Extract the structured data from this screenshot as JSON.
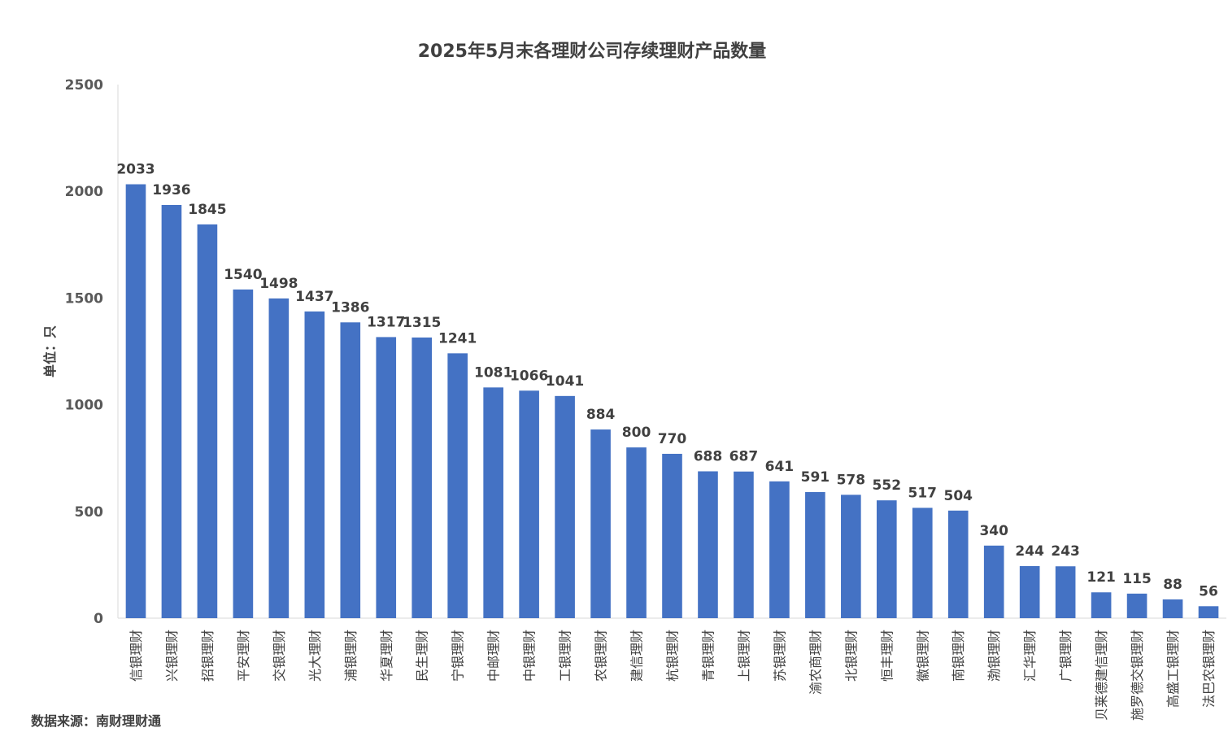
{
  "chart_data": {
    "type": "bar",
    "title": "2025年5月末各理财公司存续理财产品数量",
    "ylabel": "单位：只",
    "xlabel": "",
    "ylim": [
      0,
      2500
    ],
    "yticks": [
      0,
      500,
      1000,
      1500,
      2000,
      2500
    ],
    "grid": false,
    "legend": "none",
    "bar_color": "#4472C4",
    "categories": [
      "信银理财",
      "兴银理财",
      "招银理财",
      "平安理财",
      "交银理财",
      "光大理财",
      "浦银理财",
      "华夏理财",
      "民生理财",
      "宁银理财",
      "中邮理财",
      "中银理财",
      "工银理财",
      "农银理财",
      "建信理财",
      "杭银理财",
      "青银理财",
      "上银理财",
      "苏银理财",
      "渝农商理财",
      "北银理财",
      "恒丰理财",
      "徽银理财",
      "南银理财",
      "渤银理财",
      "汇华理财",
      "广银理财",
      "贝莱德建信理财",
      "施罗德交银理财",
      "高盛工银理财",
      "法巴农银理财"
    ],
    "values": [
      2033,
      1936,
      1845,
      1540,
      1498,
      1437,
      1386,
      1317,
      1315,
      1241,
      1081,
      1066,
      1041,
      884,
      800,
      770,
      688,
      687,
      641,
      591,
      578,
      552,
      517,
      504,
      340,
      244,
      243,
      121,
      115,
      88,
      56
    ]
  },
  "footer": {
    "source": "数据来源：南财理财通"
  }
}
